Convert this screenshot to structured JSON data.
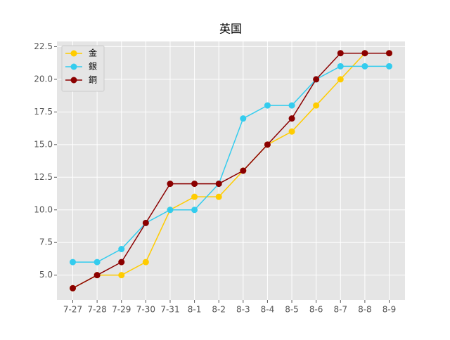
{
  "chart_data": {
    "type": "line",
    "title": "英国",
    "categories": [
      "7-27",
      "7-28",
      "7-29",
      "7-30",
      "7-31",
      "8-1",
      "8-2",
      "8-3",
      "8-4",
      "8-5",
      "8-6",
      "8-7",
      "8-8",
      "8-9"
    ],
    "series": [
      {
        "name": "金",
        "color": "#ffcc00",
        "values": [
          4,
          5,
          5,
          6,
          10,
          11,
          11,
          13,
          15,
          16,
          18,
          20,
          22,
          22
        ]
      },
      {
        "name": "銀",
        "color": "#33ccee",
        "values": [
          6,
          6,
          7,
          9,
          10,
          10,
          12,
          17,
          18,
          18,
          20,
          21,
          21,
          21
        ]
      },
      {
        "name": "銅",
        "color": "#8b0000",
        "values": [
          4,
          5,
          6,
          9,
          12,
          12,
          12,
          13,
          15,
          17,
          20,
          22,
          22,
          22
        ]
      }
    ],
    "ylim": [
      3.1,
      22.9
    ],
    "yticks": [
      {
        "value": 5,
        "label": "5.0"
      },
      {
        "value": 7.5,
        "label": "7.5"
      },
      {
        "value": 10,
        "label": "10.0"
      },
      {
        "value": 12.5,
        "label": "12.5"
      },
      {
        "value": 15,
        "label": "15.0"
      },
      {
        "value": 17.5,
        "label": "17.5"
      },
      {
        "value": 20,
        "label": "20.0"
      },
      {
        "value": 22.5,
        "label": "22.5"
      }
    ],
    "grid": true,
    "legend": "upper-left"
  }
}
